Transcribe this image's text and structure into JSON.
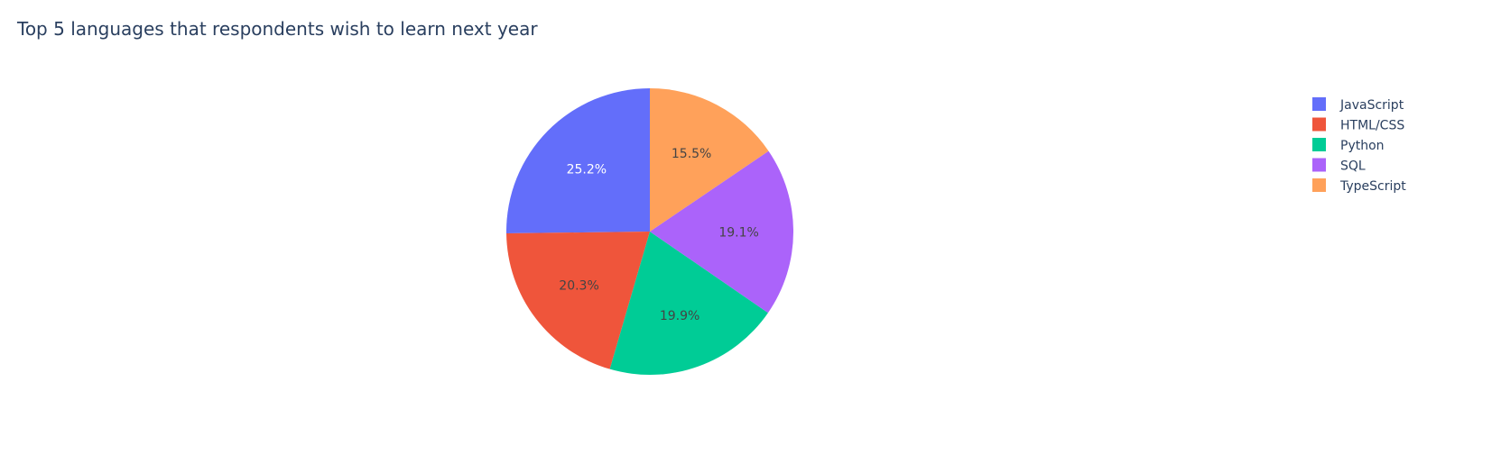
{
  "chart_data": {
    "type": "pie",
    "title": "Top 5 languages that respondents wish to learn next year",
    "labels": [
      "JavaScript",
      "HTML/CSS",
      "Python",
      "SQL",
      "TypeScript"
    ],
    "values": [
      25.2,
      20.3,
      19.9,
      19.1,
      15.5
    ],
    "value_labels": [
      "25.2%",
      "20.3%",
      "19.9%",
      "19.1%",
      "15.5%"
    ],
    "colors": [
      "#636efa",
      "#ef553b",
      "#00cc96",
      "#ab63fa",
      "#ffa15a"
    ],
    "label_colors": [
      "#ffffff",
      "#444444",
      "#444444",
      "#444444",
      "#444444"
    ],
    "direction": "counterclockwise",
    "start_angle_deg": 90,
    "legend_position": "top-right"
  }
}
